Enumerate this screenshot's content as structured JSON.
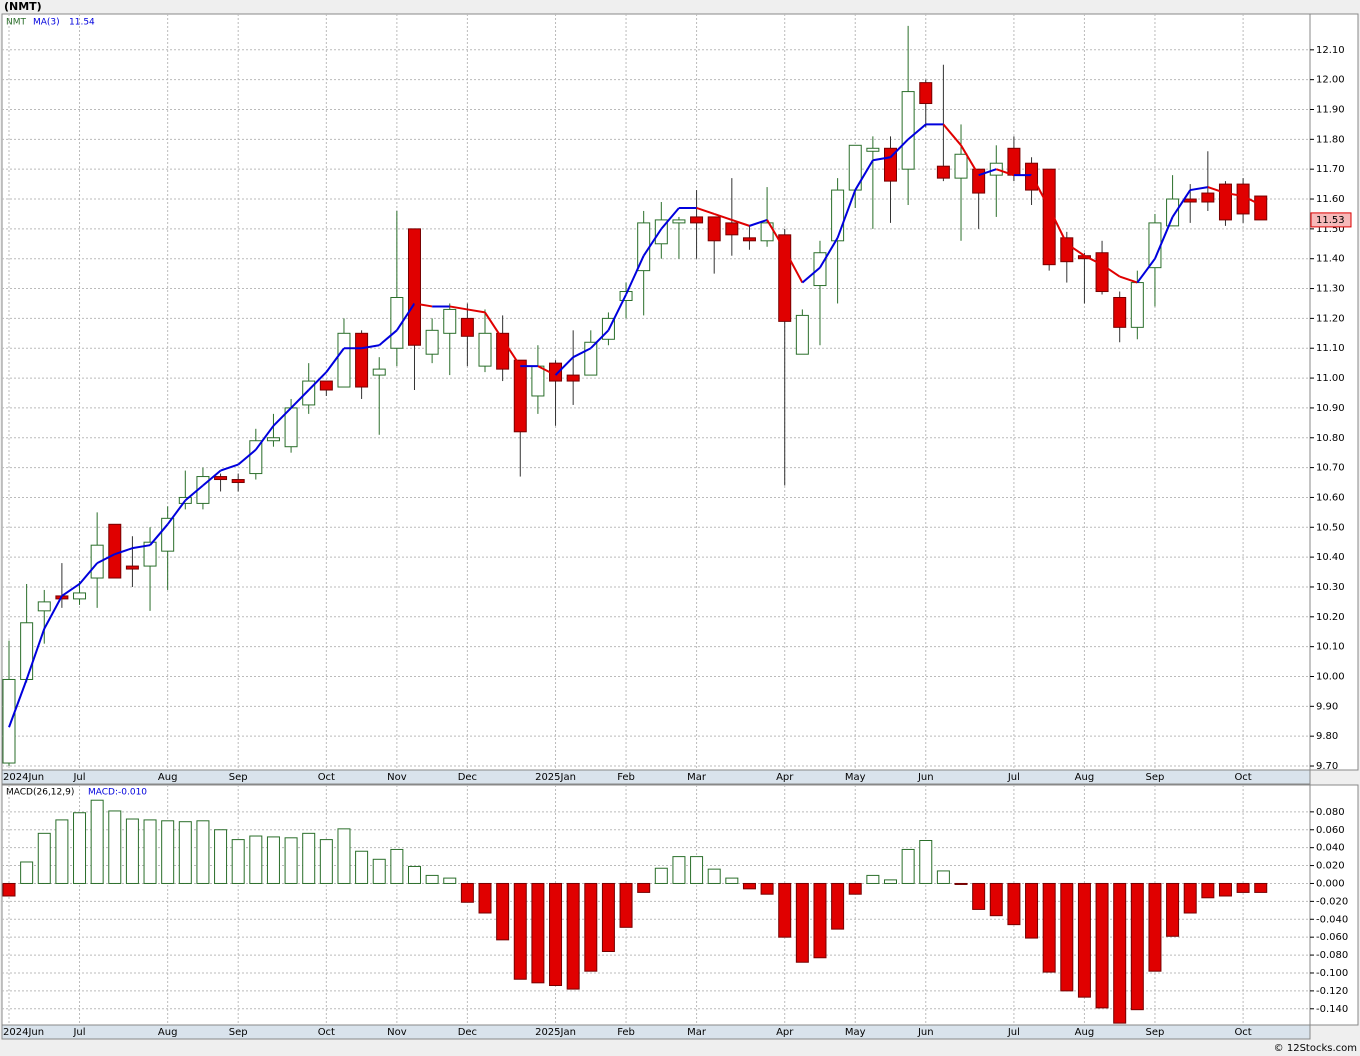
{
  "title": "(NMT)",
  "copyright": "© 12Stocks.com",
  "chart_data": [
    {
      "type": "candlestick",
      "grid": true,
      "last_price": 11.53,
      "categories": [
        "2024Jun",
        null,
        null,
        null,
        "Jul",
        null,
        null,
        null,
        null,
        "Aug",
        null,
        null,
        null,
        "Sep",
        null,
        null,
        null,
        null,
        "Oct",
        null,
        null,
        null,
        "Nov",
        null,
        null,
        null,
        "Dec",
        null,
        null,
        null,
        null,
        "2025Jan",
        null,
        null,
        null,
        "Feb",
        null,
        null,
        null,
        "Mar",
        null,
        null,
        null,
        null,
        "Apr",
        null,
        null,
        null,
        "May",
        null,
        null,
        null,
        "Jun",
        null,
        null,
        null,
        null,
        "Jul",
        null,
        null,
        null,
        "Aug",
        null,
        null,
        null,
        "Sep",
        null,
        null,
        null,
        null,
        "Oct",
        null
      ],
      "series": [
        {
          "name": "NMT",
          "up_color": "#2a6e2a",
          "down_color": "#e00000",
          "open": [
            9.71,
            9.99,
            10.22,
            10.27,
            10.26,
            10.33,
            10.51,
            10.37,
            10.37,
            10.42,
            10.58,
            10.58,
            10.67,
            10.66,
            10.68,
            10.79,
            10.77,
            10.91,
            10.99,
            10.97,
            11.15,
            11.01,
            11.1,
            11.5,
            11.08,
            11.15,
            11.2,
            11.04,
            11.15,
            11.06,
            10.94,
            11.05,
            11.01,
            11.01,
            11.13,
            11.26,
            11.36,
            11.45,
            11.52,
            11.54,
            11.54,
            11.52,
            11.47,
            11.46,
            11.48,
            11.08,
            11.31,
            11.46,
            11.63,
            11.76,
            11.77,
            11.7,
            11.99,
            11.71,
            11.67,
            11.7,
            11.68,
            11.77,
            11.72,
            11.7,
            11.47,
            11.41,
            11.42,
            11.27,
            11.17,
            11.37,
            11.51,
            11.6,
            11.62,
            11.65,
            11.65,
            11.61
          ],
          "high": [
            10.12,
            10.31,
            10.29,
            10.38,
            10.32,
            10.55,
            10.51,
            10.47,
            10.5,
            10.57,
            10.69,
            10.7,
            10.68,
            10.68,
            10.83,
            10.88,
            10.93,
            11.05,
            10.99,
            11.2,
            11.16,
            11.07,
            11.56,
            11.5,
            11.2,
            11.25,
            11.25,
            11.23,
            11.21,
            11.06,
            11.11,
            11.06,
            11.16,
            11.16,
            11.22,
            11.32,
            11.56,
            11.59,
            11.54,
            11.63,
            11.54,
            11.67,
            11.51,
            11.64,
            11.5,
            11.23,
            11.46,
            11.67,
            11.78,
            11.81,
            11.81,
            12.18,
            12.0,
            12.05,
            11.85,
            11.7,
            11.78,
            11.81,
            11.74,
            11.7,
            11.49,
            11.42,
            11.46,
            11.29,
            11.36,
            11.55,
            11.68,
            11.65,
            11.76,
            11.66,
            11.67,
            11.61
          ],
          "low": [
            9.7,
            9.98,
            10.11,
            10.23,
            10.24,
            10.23,
            10.33,
            10.3,
            10.22,
            10.29,
            10.56,
            10.56,
            10.62,
            10.62,
            10.66,
            10.77,
            10.75,
            10.88,
            10.94,
            10.97,
            10.93,
            10.81,
            11.04,
            10.96,
            11.05,
            11.01,
            11.04,
            11.02,
            10.99,
            10.67,
            10.88,
            10.84,
            10.91,
            11.01,
            11.11,
            11.2,
            11.21,
            11.4,
            11.4,
            11.4,
            11.35,
            11.41,
            11.43,
            11.44,
            10.64,
            11.08,
            11.11,
            11.25,
            11.57,
            11.5,
            11.52,
            11.58,
            11.84,
            11.66,
            11.46,
            11.5,
            11.54,
            11.66,
            11.58,
            11.36,
            11.32,
            11.25,
            11.28,
            11.12,
            11.13,
            11.24,
            11.52,
            11.52,
            11.56,
            11.51,
            11.52,
            11.53
          ],
          "close": [
            9.99,
            10.18,
            10.25,
            10.26,
            10.28,
            10.44,
            10.33,
            10.36,
            10.45,
            10.53,
            10.6,
            10.67,
            10.66,
            10.65,
            10.79,
            10.8,
            10.9,
            10.99,
            10.96,
            11.15,
            10.97,
            11.03,
            11.27,
            11.11,
            11.16,
            11.23,
            11.14,
            11.15,
            11.03,
            10.82,
            11.04,
            10.99,
            10.99,
            11.12,
            11.2,
            11.29,
            11.52,
            11.53,
            11.53,
            11.52,
            11.46,
            11.48,
            11.46,
            11.52,
            11.19,
            11.21,
            11.42,
            11.63,
            11.78,
            11.77,
            11.66,
            11.96,
            11.92,
            11.67,
            11.75,
            11.62,
            11.72,
            11.68,
            11.63,
            11.38,
            11.39,
            11.4,
            11.29,
            11.17,
            11.32,
            11.52,
            11.6,
            11.59,
            11.59,
            11.53,
            11.55,
            11.53
          ]
        }
      ],
      "ma": {
        "name": "MA(3)",
        "last": 11.54,
        "up_color": "#0000dd",
        "down_color": "#e00000",
        "values": [
          9.83,
          9.99,
          10.16,
          10.27,
          10.31,
          10.38,
          10.41,
          10.43,
          10.44,
          10.51,
          10.59,
          10.64,
          10.69,
          10.71,
          10.76,
          10.84,
          10.9,
          10.96,
          11.02,
          11.1,
          11.1,
          11.11,
          11.16,
          11.25,
          11.24,
          11.24,
          11.23,
          11.22,
          11.13,
          11.04,
          11.04,
          11.01,
          11.07,
          11.1,
          11.16,
          11.28,
          11.41,
          11.5,
          11.57,
          11.57,
          11.55,
          11.53,
          11.51,
          11.53,
          11.43,
          11.32,
          11.37,
          11.47,
          11.63,
          11.73,
          11.74,
          11.8,
          11.85,
          11.85,
          11.78,
          11.68,
          11.7,
          11.68,
          11.68,
          11.57,
          11.45,
          11.41,
          11.38,
          11.34,
          11.32,
          11.4,
          11.54,
          11.63,
          11.64,
          11.62,
          11.61,
          11.58
        ]
      },
      "ylim": [
        9.69,
        12.22
      ],
      "yticks": [
        {
          "value": 9.7,
          "label": "9.70"
        },
        {
          "value": 9.8,
          "label": "9.80"
        },
        {
          "value": 9.9,
          "label": "9.90"
        },
        {
          "value": 10.0,
          "label": "10.00"
        },
        {
          "value": 10.1,
          "label": "10.10"
        },
        {
          "value": 10.2,
          "label": "10.20"
        },
        {
          "value": 10.3,
          "label": "10.30"
        },
        {
          "value": 10.4,
          "label": "10.40"
        },
        {
          "value": 10.5,
          "label": "10.50"
        },
        {
          "value": 10.6,
          "label": "10.60"
        },
        {
          "value": 10.7,
          "label": "10.70"
        },
        {
          "value": 10.8,
          "label": "10.80"
        },
        {
          "value": 10.9,
          "label": "10.90"
        },
        {
          "value": 11.0,
          "label": "11.00"
        },
        {
          "value": 11.1,
          "label": "11.10"
        },
        {
          "value": 11.2,
          "label": "11.20"
        },
        {
          "value": 11.3,
          "label": "11.30"
        },
        {
          "value": 11.4,
          "label": "11.40"
        },
        {
          "value": 11.5,
          "label": "11.50"
        },
        {
          "value": 11.6,
          "label": "11.60"
        },
        {
          "value": 11.7,
          "label": "11.70"
        },
        {
          "value": 11.8,
          "label": "11.80"
        },
        {
          "value": 11.9,
          "label": "11.90"
        },
        {
          "value": 12.0,
          "label": "12.00"
        },
        {
          "value": 12.1,
          "label": "12.10"
        }
      ]
    },
    {
      "type": "bar",
      "grid": true,
      "title": "MACD(26,12,9)",
      "value_label": "MACD:-0.010",
      "up_color": "#2a6e2a",
      "down_color": "#e00000",
      "categories": [
        "2024Jun",
        null,
        null,
        null,
        "Jul",
        null,
        null,
        null,
        null,
        "Aug",
        null,
        null,
        null,
        "Sep",
        null,
        null,
        null,
        null,
        "Oct",
        null,
        null,
        null,
        "Nov",
        null,
        null,
        null,
        "Dec",
        null,
        null,
        null,
        null,
        "2025Jan",
        null,
        null,
        null,
        "Feb",
        null,
        null,
        null,
        "Mar",
        null,
        null,
        null,
        null,
        "Apr",
        null,
        null,
        null,
        "May",
        null,
        null,
        null,
        "Jun",
        null,
        null,
        null,
        null,
        "Jul",
        null,
        null,
        null,
        "Aug",
        null,
        null,
        null,
        "Sep",
        null,
        null,
        null,
        null,
        "Oct",
        null
      ],
      "values": [
        -0.014,
        0.024,
        0.056,
        0.071,
        0.079,
        0.093,
        0.081,
        0.072,
        0.071,
        0.07,
        0.069,
        0.07,
        0.06,
        0.049,
        0.053,
        0.052,
        0.051,
        0.056,
        0.049,
        0.061,
        0.036,
        0.027,
        0.038,
        0.019,
        0.009,
        0.006,
        -0.021,
        -0.033,
        -0.063,
        -0.107,
        -0.111,
        -0.114,
        -0.118,
        -0.098,
        -0.076,
        -0.049,
        -0.01,
        0.017,
        0.03,
        0.03,
        0.016,
        0.006,
        -0.006,
        -0.012,
        -0.06,
        -0.088,
        -0.083,
        -0.051,
        -0.012,
        0.009,
        0.004,
        0.038,
        0.048,
        0.014,
        -0.001,
        -0.029,
        -0.036,
        -0.046,
        -0.061,
        -0.099,
        -0.12,
        -0.127,
        -0.139,
        -0.156,
        -0.141,
        -0.098,
        -0.059,
        -0.033,
        -0.016,
        -0.014,
        -0.01,
        -0.01
      ],
      "ylim": [
        -0.157,
        0.11
      ],
      "yticks": [
        {
          "value": -0.14,
          "label": "-0.140"
        },
        {
          "value": -0.12,
          "label": "-0.120"
        },
        {
          "value": -0.1,
          "label": "-0.100"
        },
        {
          "value": -0.08,
          "label": "-0.080"
        },
        {
          "value": -0.06,
          "label": "-0.060"
        },
        {
          "value": -0.04,
          "label": "-0.040"
        },
        {
          "value": -0.02,
          "label": "-0.020"
        },
        {
          "value": 0,
          "label": "0.000"
        },
        {
          "value": 0.02,
          "label": "0.020"
        },
        {
          "value": 0.04,
          "label": "0.040"
        },
        {
          "value": 0.06,
          "label": "0.060"
        },
        {
          "value": 0.08,
          "label": "0.080"
        }
      ]
    }
  ]
}
